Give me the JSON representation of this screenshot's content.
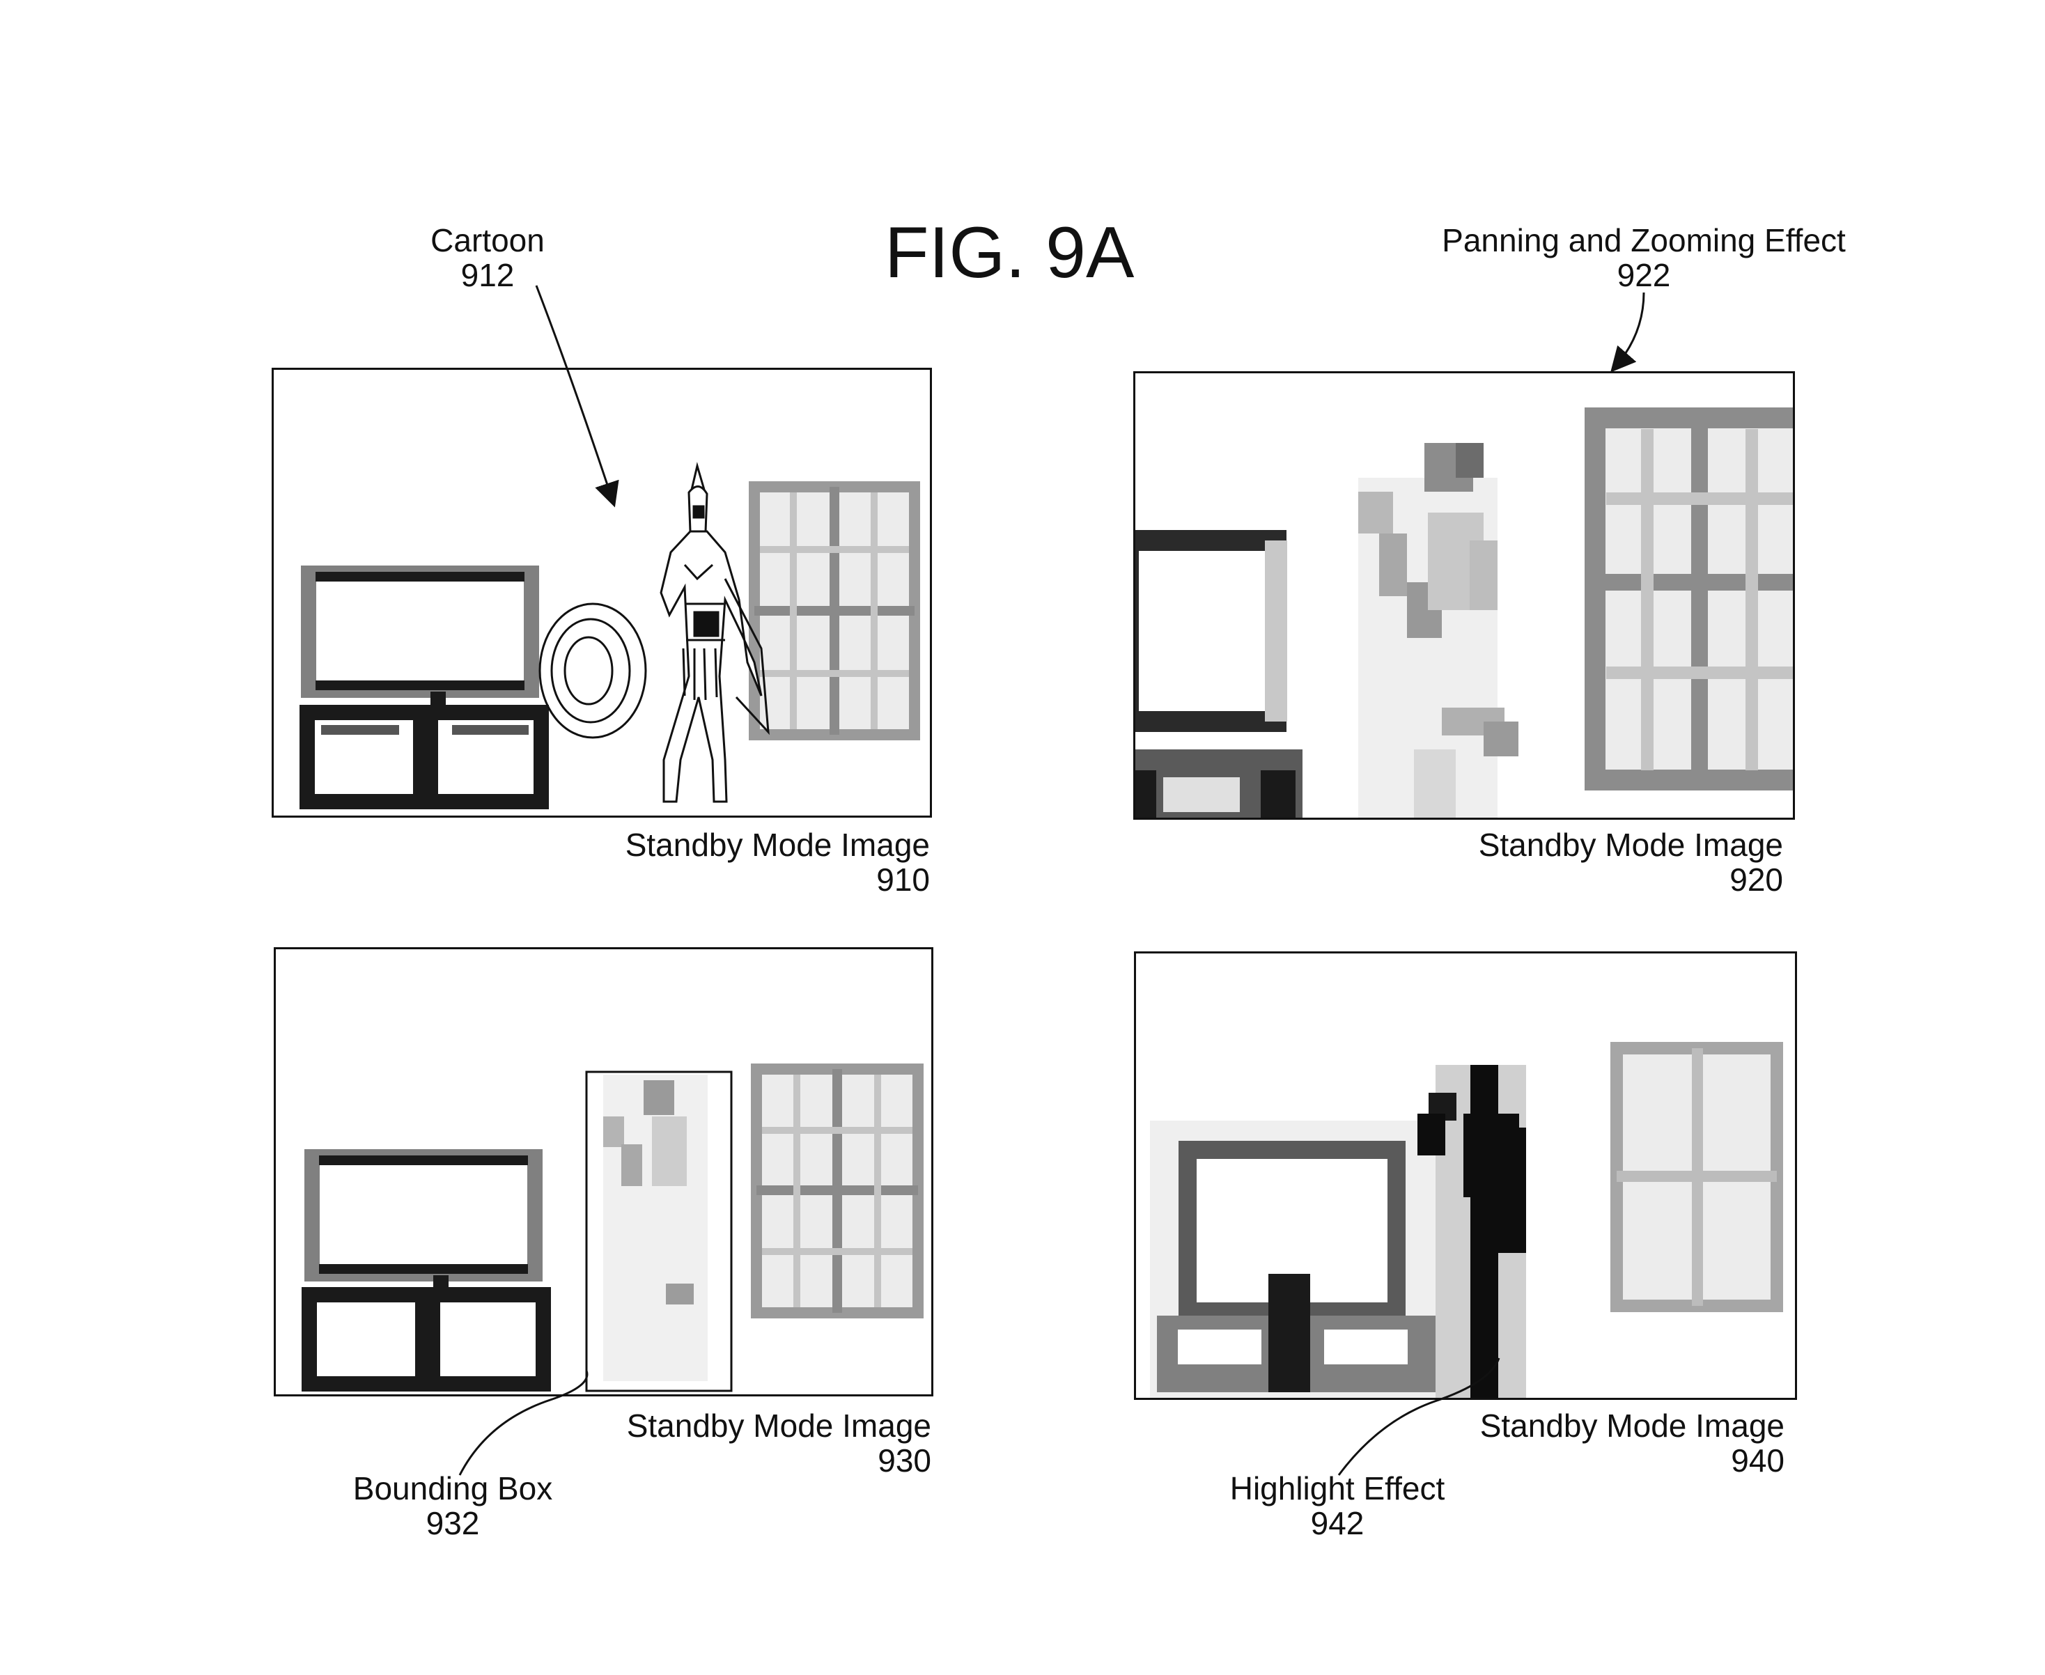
{
  "figure": {
    "title": "FIG. 9A"
  },
  "colors": {
    "ink": "#111111",
    "dark": "#1a1a1a",
    "mid": "#808080",
    "light": "#c8c8c8",
    "pale": "#e4e4e4"
  },
  "panels": [
    {
      "id": "910",
      "caption": "Standby Mode Image",
      "number": "910",
      "callout": {
        "label": "Cartoon",
        "number": "912"
      }
    },
    {
      "id": "920",
      "caption": "Standby Mode Image",
      "number": "920",
      "callout": {
        "label": "Panning and Zooming Effect",
        "number": "922"
      }
    },
    {
      "id": "930",
      "caption": "Standby Mode Image",
      "number": "930",
      "callout": {
        "label": "Bounding Box",
        "number": "932"
      }
    },
    {
      "id": "940",
      "caption": "Standby Mode Image",
      "number": "940",
      "callout": {
        "label": "Highlight Effect",
        "number": "942"
      }
    }
  ]
}
